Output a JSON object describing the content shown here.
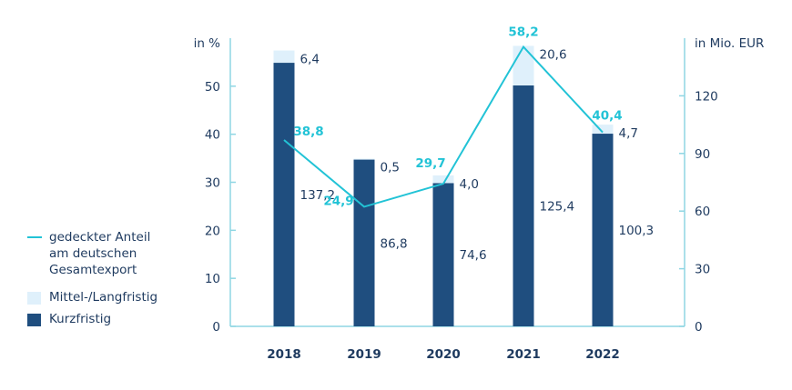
{
  "chart_data": {
    "type": "bar",
    "categories": [
      "2018",
      "2019",
      "2020",
      "2021",
      "2022"
    ],
    "left_axis": {
      "label": "in %",
      "ticks": [
        0,
        10,
        20,
        30,
        40,
        50
      ],
      "range": [
        0,
        60
      ]
    },
    "right_axis": {
      "label": "in Mio. EUR",
      "ticks": [
        0,
        30,
        60,
        90,
        120
      ],
      "range": [
        0,
        150
      ]
    },
    "series": [
      {
        "name": "Kurzfristig",
        "axis": "right",
        "values": [
          137.2,
          86.8,
          74.6,
          125.4,
          100.3
        ],
        "color": "#1f4e7f"
      },
      {
        "name": "Mittel-/Langfristig",
        "axis": "right",
        "values": [
          6.4,
          0.5,
          4.0,
          20.6,
          4.7
        ],
        "color": "#dff0fb"
      },
      {
        "name": "gedeckter Anteil am deutschen Gesamtexport",
        "axis": "left",
        "type": "line",
        "values": [
          38.8,
          24.9,
          29.7,
          58.2,
          40.4
        ],
        "color": "#22c3d6"
      }
    ],
    "value_labels": {
      "kurz": [
        "137,2",
        "86,8",
        "74,6",
        "125,4",
        "100,3"
      ],
      "mittel": [
        "6,4",
        "0,5",
        "4,0",
        "20,6",
        "4,7"
      ],
      "line": [
        "38,8",
        "24,9",
        "29,7",
        "58,2",
        "40,4"
      ]
    }
  },
  "legend": {
    "line_label_lines": [
      "gedeckter Anteil",
      "am deutschen",
      "Gesamtexport"
    ],
    "mittel_label": "Mittel-/Langfristig",
    "kurz_label": "Kurzfristig"
  },
  "colors": {
    "kurz": "#1f4e7f",
    "mittel": "#dff0fb",
    "line": "#22c3d6",
    "axis": "#8fd6e3",
    "text": "#1e3a5f"
  }
}
